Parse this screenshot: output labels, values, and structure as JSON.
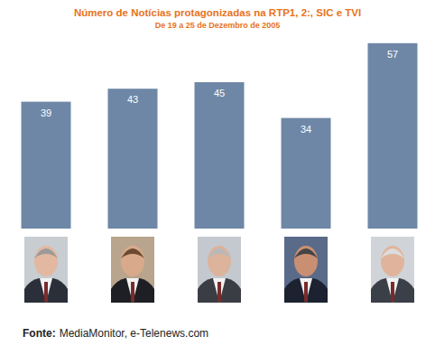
{
  "chart_data": {
    "type": "bar",
    "title": "Número de Notícias protagonizadas na RTP1, 2:, SIC e TVI",
    "subtitle": "De 19 a 25 de Dezembro de 2005",
    "categories": [
      null,
      null,
      null,
      null,
      null
    ],
    "values": [
      39,
      43,
      45,
      34,
      57
    ],
    "color": "#6e87a6",
    "ylim": [
      0,
      60
    ],
    "data_labels": true,
    "tick_labels": false,
    "source_label": "Fonte:",
    "source": "MediaMonitor, e-Telenews.com"
  }
}
